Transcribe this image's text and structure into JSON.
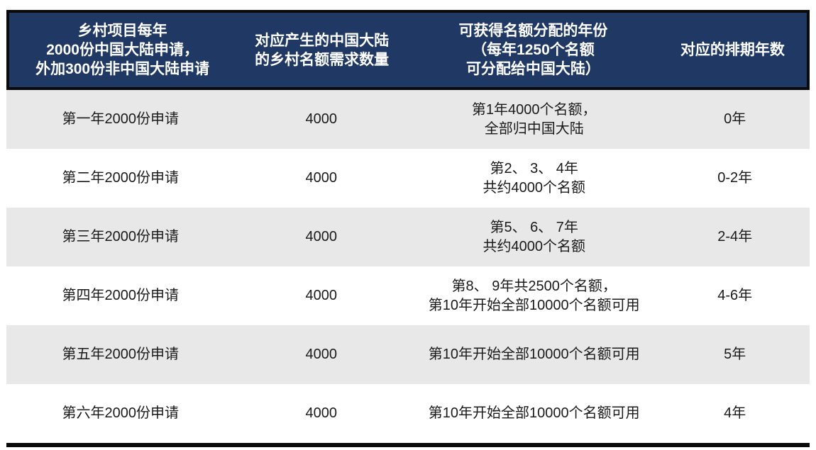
{
  "colors": {
    "header_bg": "#1F3864",
    "header_text": "#FFFFFF",
    "row_alt_bg": "#E8E8E8",
    "row_bg": "#FFFFFF",
    "rule": "#0A0A0A",
    "body_text": "#1A1A1A"
  },
  "table": {
    "headers": [
      "乡村项目每年\n2000份中国大陆申请，\n外加300份非中国大陆申请",
      "对应产生的中国大陆\n的乡村名额需求数量",
      "可获得名额分配的年份\n（每年1250个名额\n可分配给中国大陆）",
      "对应的排期年数"
    ],
    "rows": [
      [
        "第一年2000份申请",
        "4000",
        "第1年4000个名额，\n全部归中国大陆",
        "0年"
      ],
      [
        "第二年2000份申请",
        "4000",
        "第2、 3、 4年\n共约4000个名额",
        "0-2年"
      ],
      [
        "第三年2000份申请",
        "4000",
        "第5、 6、 7年\n共约4000个名额",
        "2-4年"
      ],
      [
        "第四年2000份申请",
        "4000",
        "第8、 9年共2500个名额，\n第10年开始全部10000个名额可用",
        "4-6年"
      ],
      [
        "第五年2000份申请",
        "4000",
        "第10年开始全部10000个名额可用",
        "5年"
      ],
      [
        "第六年2000份申请",
        "4000",
        "第10年开始全部10000个名额可用",
        "4年"
      ]
    ]
  },
  "chart_data": {
    "type": "table",
    "title": "",
    "columns": [
      "乡村项目每年2000份中国大陆申请，外加300份非中国大陆申请",
      "对应产生的中国大陆的乡村名额需求数量",
      "可获得名额分配的年份（每年1250个名额可分配给中国大陆）",
      "对应的排期年数"
    ],
    "rows": [
      [
        "第一年2000份申请",
        4000,
        "第1年4000个名额，全部归中国大陆",
        "0年"
      ],
      [
        "第二年2000份申请",
        4000,
        "第2、3、4年共约4000个名额",
        "0-2年"
      ],
      [
        "第三年2000份申请",
        4000,
        "第5、6、7年共约4000个名额",
        "2-4年"
      ],
      [
        "第四年2000份申请",
        4000,
        "第8、9年共2500个名额，第10年开始全部10000个名额可用",
        "4-6年"
      ],
      [
        "第五年2000份申请",
        4000,
        "第10年开始全部10000个名额可用",
        "5年"
      ],
      [
        "第六年2000份申请",
        4000,
        "第10年开始全部10000个名额可用",
        "4年"
      ]
    ],
    "layout": {
      "header_style": "dark-navy, white bold text, black outline",
      "row_striping": "gray/white alternating starting gray",
      "bottom_rule": true,
      "grid": false
    }
  }
}
